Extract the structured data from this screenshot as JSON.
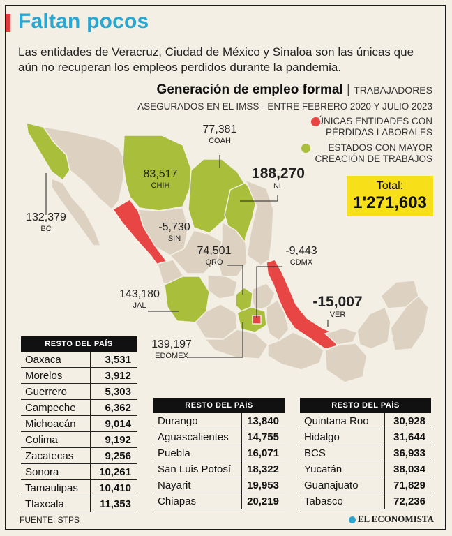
{
  "header": {
    "title": "Faltan pocos",
    "subtitle": "Las entidades de Veracruz, Ciudad de México y Sinaloa son las únicas que aún no recuperan los empleos perdidos durante la pandemia."
  },
  "chart_data": {
    "type": "table",
    "title": "Generación de empleo formal",
    "unit": "TRABAJADORES",
    "period": "ASEGURADOS EN EL IMSS - ENTRE FEBRERO 2020 Y JULIO 2023",
    "legend": {
      "losses": "ÚNICAS ENTIDADES CON PÉRDIDAS LABORALES",
      "top": "ESTADOS CON MAYOR CREACIÓN DE TRABAJOS"
    },
    "colors": {
      "losses": "#e84545",
      "top": "#a9bf3c",
      "rest": "#ddd2c2",
      "accent": "#2aa6d0",
      "total_bg": "#f7e01a"
    },
    "total": {
      "label": "Total:",
      "value": "1'271,603"
    },
    "map_labels": [
      {
        "abbr": "BC",
        "value": "132,379",
        "group": "top"
      },
      {
        "abbr": "CHIH",
        "value": "83,517",
        "group": "top"
      },
      {
        "abbr": "COAH",
        "value": "77,381",
        "group": "top"
      },
      {
        "abbr": "NL",
        "value": "188,270",
        "group": "top"
      },
      {
        "abbr": "SIN",
        "value": "-5,730",
        "group": "losses"
      },
      {
        "abbr": "QRO",
        "value": "74,501",
        "group": "top"
      },
      {
        "abbr": "CDMX",
        "value": "-9,443",
        "group": "losses"
      },
      {
        "abbr": "JAL",
        "value": "143,180",
        "group": "top"
      },
      {
        "abbr": "VER",
        "value": "-15,007",
        "group": "losses"
      },
      {
        "abbr": "EDOMEX",
        "value": "139,197",
        "group": "top"
      }
    ],
    "tables": [
      {
        "header": "RESTO DEL PAÍS",
        "rows": [
          [
            "Oaxaca",
            "3,531"
          ],
          [
            "Morelos",
            "3,912"
          ],
          [
            "Guerrero",
            "5,303"
          ],
          [
            "Campeche",
            "6,362"
          ],
          [
            "Michoacán",
            "9,014"
          ],
          [
            "Colima",
            "9,192"
          ],
          [
            "Zacatecas",
            "9,256"
          ],
          [
            "Sonora",
            "10,261"
          ],
          [
            "Tamaulipas",
            "10,410"
          ],
          [
            "Tlaxcala",
            "11,353"
          ]
        ]
      },
      {
        "header": "RESTO DEL PAÍS",
        "rows": [
          [
            "Durango",
            "13,840"
          ],
          [
            "Aguascalientes",
            "14,755"
          ],
          [
            "Puebla",
            "16,071"
          ],
          [
            "San Luis Potosí",
            "18,322"
          ],
          [
            "Nayarit",
            "19,953"
          ],
          [
            "Chiapas",
            "20,219"
          ]
        ]
      },
      {
        "header": "RESTO DEL PAÍS",
        "rows": [
          [
            "Quintana Roo",
            "30,928"
          ],
          [
            "Hidalgo",
            "31,644"
          ],
          [
            "BCS",
            "36,933"
          ],
          [
            "Yucatán",
            "38,034"
          ],
          [
            "Guanajuato",
            "71,829"
          ],
          [
            "Tabasco",
            "72,236"
          ]
        ]
      }
    ]
  },
  "footer": {
    "source": "FUENTE: STPS",
    "brand": "EL ECONOMISTA"
  }
}
